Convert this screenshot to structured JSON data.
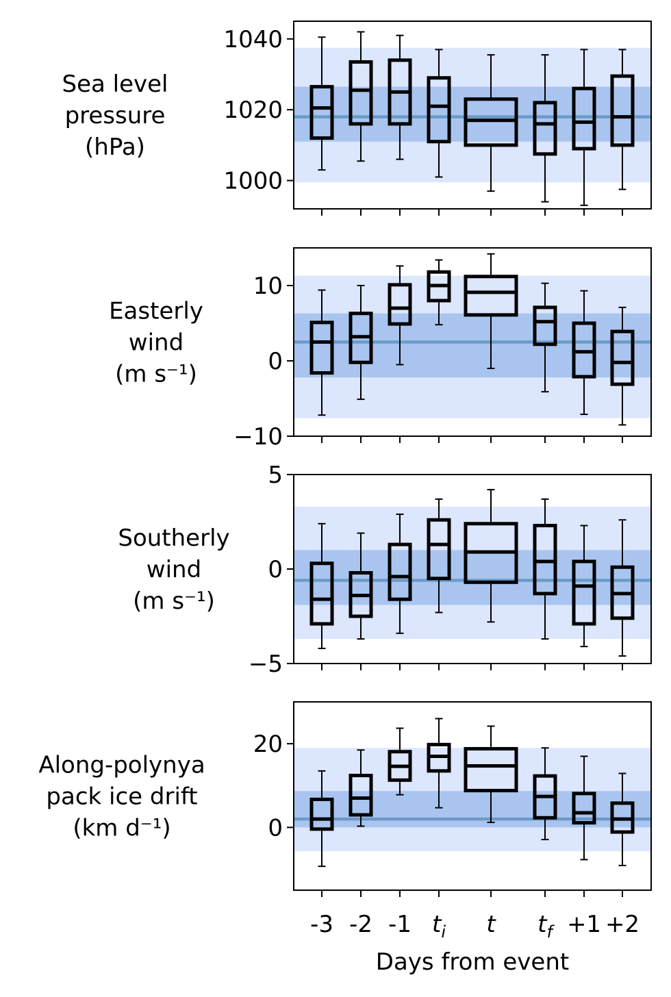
{
  "chart_data": [
    {
      "type": "box",
      "ylabel_lines": [
        "Sea level",
        "pressure",
        "(hPa)"
      ],
      "ylim": [
        992,
        1045
      ],
      "yticks": [
        1000,
        1020,
        1040
      ],
      "ytick_labels": [
        "1000",
        "1020",
        "1040"
      ],
      "climatology": {
        "median": 1018,
        "iqr": [
          1011,
          1026.5
        ],
        "range": [
          999.5,
          1037.5
        ]
      },
      "boxes": [
        {
          "whisker_low": 1003,
          "q1": 1012,
          "median": 1020.5,
          "q3": 1026.5,
          "whisker_high": 1040.5
        },
        {
          "whisker_low": 1005.5,
          "q1": 1016,
          "median": 1025.5,
          "q3": 1033.5,
          "whisker_high": 1042
        },
        {
          "whisker_low": 1006,
          "q1": 1016,
          "median": 1025,
          "q3": 1034,
          "whisker_high": 1041
        },
        {
          "whisker_low": 1001,
          "q1": 1011,
          "median": 1021,
          "q3": 1029,
          "whisker_high": 1037
        },
        {
          "whisker_low": 997,
          "q1": 1010,
          "median": 1017,
          "q3": 1023,
          "whisker_high": 1035.5
        },
        {
          "whisker_low": 994,
          "q1": 1007.5,
          "median": 1016,
          "q3": 1022,
          "whisker_high": 1035.5
        },
        {
          "whisker_low": 993,
          "q1": 1009,
          "median": 1016.5,
          "q3": 1026,
          "whisker_high": 1037
        },
        {
          "whisker_low": 997.5,
          "q1": 1010,
          "median": 1018,
          "q3": 1029.5,
          "whisker_high": 1037
        }
      ]
    },
    {
      "type": "box",
      "ylabel_lines": [
        "Easterly",
        "wind",
        "(m s⁻¹)"
      ],
      "ylim": [
        -10,
        15
      ],
      "yticks": [
        -10,
        0,
        10
      ],
      "ytick_labels": [
        "−10",
        "0",
        "10"
      ],
      "climatology": {
        "median": 2.5,
        "iqr": [
          -2.2,
          6.3
        ],
        "range": [
          -7.6,
          11.3
        ]
      },
      "boxes": [
        {
          "whisker_low": -7.2,
          "q1": -1.6,
          "median": 2.5,
          "q3": 5.1,
          "whisker_high": 9.4
        },
        {
          "whisker_low": -5.1,
          "q1": -0.2,
          "median": 3.2,
          "q3": 6.3,
          "whisker_high": 10
        },
        {
          "whisker_low": -0.5,
          "q1": 4.9,
          "median": 7,
          "q3": 10.1,
          "whisker_high": 12.6
        },
        {
          "whisker_low": 4.8,
          "q1": 8,
          "median": 10,
          "q3": 11.8,
          "whisker_high": 13.4
        },
        {
          "whisker_low": -1,
          "q1": 6.1,
          "median": 9.1,
          "q3": 11.2,
          "whisker_high": 14.2
        },
        {
          "whisker_low": -4.1,
          "q1": 2.2,
          "median": 5.2,
          "q3": 7.1,
          "whisker_high": 10.3
        },
        {
          "whisker_low": -7.1,
          "q1": -2.1,
          "median": 1.2,
          "q3": 5,
          "whisker_high": 9.3
        },
        {
          "whisker_low": -8.5,
          "q1": -3.1,
          "median": -0.2,
          "q3": 3.9,
          "whisker_high": 7.1
        }
      ]
    },
    {
      "type": "box",
      "ylabel_lines": [
        "Southerly",
        "wind",
        "(m s⁻¹)"
      ],
      "ylim": [
        -5,
        5
      ],
      "yticks": [
        -5,
        0,
        5
      ],
      "ytick_labels": [
        "−5",
        "0",
        "5"
      ],
      "climatology": {
        "median": -0.6,
        "iqr": [
          -1.9,
          1
        ],
        "range": [
          -3.7,
          3.3
        ]
      },
      "boxes": [
        {
          "whisker_low": -4.2,
          "q1": -2.9,
          "median": -1.6,
          "q3": 0.3,
          "whisker_high": 2.4
        },
        {
          "whisker_low": -3.7,
          "q1": -2.5,
          "median": -1.4,
          "q3": -0.2,
          "whisker_high": 1.9
        },
        {
          "whisker_low": -3.4,
          "q1": -1.6,
          "median": -0.4,
          "q3": 1.3,
          "whisker_high": 2.9
        },
        {
          "whisker_low": -2.3,
          "q1": -0.5,
          "median": 1.3,
          "q3": 2.6,
          "whisker_high": 3.7
        },
        {
          "whisker_low": -2.8,
          "q1": -0.7,
          "median": 0.9,
          "q3": 2.4,
          "whisker_high": 4.2
        },
        {
          "whisker_low": -3.7,
          "q1": -1.3,
          "median": 0.4,
          "q3": 2.3,
          "whisker_high": 3.7
        },
        {
          "whisker_low": -4.1,
          "q1": -2.9,
          "median": -0.9,
          "q3": 0.4,
          "whisker_high": 2.3
        },
        {
          "whisker_low": -4.6,
          "q1": -2.6,
          "median": -1.3,
          "q3": 0.1,
          "whisker_high": 2.6
        }
      ]
    },
    {
      "type": "box",
      "ylabel_lines": [
        "Along-polynya",
        "pack ice drift",
        "(km d⁻¹)"
      ],
      "ylim": [
        -15,
        30
      ],
      "yticks": [
        0,
        20
      ],
      "ytick_labels": [
        "0",
        "20"
      ],
      "climatology": {
        "median": 2,
        "iqr": [
          0,
          8.7
        ],
        "range": [
          -5.7,
          19
        ]
      },
      "boxes": [
        {
          "whisker_low": -9.3,
          "q1": -0.4,
          "median": 2,
          "q3": 6.7,
          "whisker_high": 13.5
        },
        {
          "whisker_low": 0.3,
          "q1": 3,
          "median": 7,
          "q3": 12.4,
          "whisker_high": 18.5
        },
        {
          "whisker_low": 7.8,
          "q1": 11.3,
          "median": 14.6,
          "q3": 18.1,
          "whisker_high": 23.7
        },
        {
          "whisker_low": 4.7,
          "q1": 13.5,
          "median": 17,
          "q3": 19.8,
          "whisker_high": 26
        },
        {
          "whisker_low": 1.2,
          "q1": 8.8,
          "median": 14.7,
          "q3": 18.8,
          "whisker_high": 24.2
        },
        {
          "whisker_low": -2.9,
          "q1": 2.3,
          "median": 7.4,
          "q3": 12.3,
          "whisker_high": 19
        },
        {
          "whisker_low": -7.7,
          "q1": 1.1,
          "median": 3.5,
          "q3": 8.1,
          "whisker_high": 17
        },
        {
          "whisker_low": -9.1,
          "q1": -1.1,
          "median": 2,
          "q3": 5.8,
          "whisker_high": 12.9
        }
      ]
    }
  ],
  "xaxis": {
    "title": "Days from event",
    "categories": [
      {
        "base": "-3",
        "sub": "",
        "italic": false
      },
      {
        "base": "-2",
        "sub": "",
        "italic": false
      },
      {
        "base": "-1",
        "sub": "",
        "italic": false
      },
      {
        "base": "t",
        "sub": "i",
        "italic": true
      },
      {
        "base": "t",
        "sub": "",
        "italic": true
      },
      {
        "base": "t",
        "sub": "f",
        "italic": true
      },
      {
        "base": "+1",
        "sub": "",
        "italic": false
      },
      {
        "base": "+2",
        "sub": "",
        "italic": false
      }
    ],
    "wide_box_index": 4
  },
  "colors": {
    "range_band": "#dce6fd",
    "iqr_band": "#a9c5ef",
    "median_line": "#6b9bc8",
    "box_edge": "#000000"
  }
}
